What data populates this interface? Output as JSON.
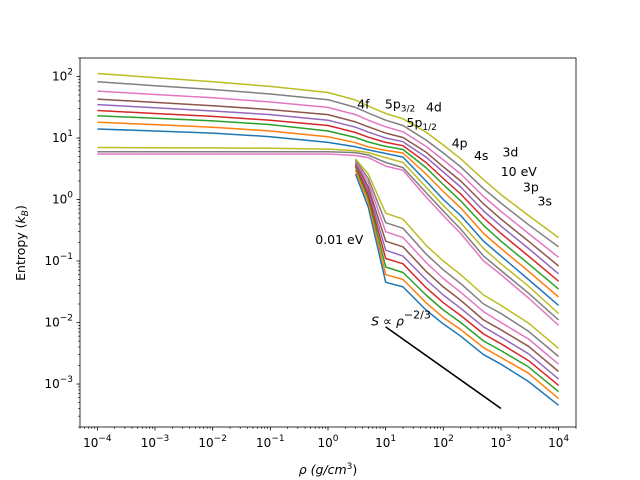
{
  "chart_data": {
    "type": "line",
    "x_scale": "log",
    "y_scale": "log",
    "xlim": [
      5e-05,
      20000
    ],
    "ylim": [
      0.0002,
      200
    ],
    "xlabel": {
      "pre": "ρ (g/cm",
      "sup": "3",
      "post": ")"
    },
    "ylabel": {
      "pre": "Entropy (",
      "italic": "k",
      "sub": "B",
      "post": ")"
    },
    "x_tick_exponents": [
      -4,
      -3,
      -2,
      -1,
      0,
      1,
      2,
      3,
      4
    ],
    "y_tick_exponents": [
      -3,
      -2,
      -1,
      0,
      1,
      2
    ],
    "tick_base": "10",
    "curve_x": [
      0.0001,
      0.001,
      0.01,
      0.1,
      1,
      3,
      5,
      10,
      20,
      50,
      100,
      200,
      500,
      1000,
      3000,
      10000
    ],
    "series": [
      {
        "name": "0.01 eV",
        "color": "#1f77b4",
        "start_x": 3,
        "values": [
          null,
          null,
          null,
          null,
          null,
          2.6,
          0.75,
          0.045,
          0.038,
          0.016,
          0.0095,
          0.006,
          0.003,
          0.0021,
          0.0011,
          0.00045
        ]
      },
      {
        "name": "",
        "color": "#ff7f0e",
        "start_x": 3,
        "values": [
          null,
          null,
          null,
          null,
          null,
          3.0,
          0.9,
          0.06,
          0.05,
          0.021,
          0.012,
          0.0077,
          0.0039,
          0.0027,
          0.0015,
          0.00058
        ]
      },
      {
        "name": "",
        "color": "#2ca02c",
        "start_x": 3,
        "values": [
          null,
          null,
          null,
          null,
          null,
          3.4,
          1.05,
          0.08,
          0.065,
          0.028,
          0.016,
          0.01,
          0.005,
          0.0035,
          0.0019,
          0.00075
        ]
      },
      {
        "name": "",
        "color": "#d62728",
        "start_x": 3,
        "values": [
          null,
          null,
          null,
          null,
          null,
          3.6,
          1.2,
          0.11,
          0.09,
          0.037,
          0.021,
          0.013,
          0.0065,
          0.0045,
          0.0024,
          0.00095
        ]
      },
      {
        "name": "",
        "color": "#9467bd",
        "start_x": 3,
        "values": [
          null,
          null,
          null,
          null,
          null,
          3.8,
          1.4,
          0.15,
          0.12,
          0.05,
          0.028,
          0.017,
          0.0085,
          0.0058,
          0.0031,
          0.0012
        ]
      },
      {
        "name": "",
        "color": "#8c564b",
        "start_x": 3,
        "values": [
          null,
          null,
          null,
          null,
          null,
          4.0,
          1.6,
          0.21,
          0.17,
          0.068,
          0.038,
          0.023,
          0.011,
          0.0076,
          0.0041,
          0.0016
        ]
      },
      {
        "name": "",
        "color": "#e377c2",
        "start_x": 3,
        "values": [
          null,
          null,
          null,
          null,
          null,
          4.2,
          1.9,
          0.3,
          0.24,
          0.095,
          0.052,
          0.031,
          0.015,
          0.01,
          0.0054,
          0.0021
        ]
      },
      {
        "name": "",
        "color": "#7f7f7f",
        "start_x": 3,
        "values": [
          null,
          null,
          null,
          null,
          null,
          4.4,
          2.2,
          0.42,
          0.34,
          0.13,
          0.072,
          0.043,
          0.02,
          0.014,
          0.0072,
          0.0028
        ]
      },
      {
        "name": "",
        "color": "#bcbd22",
        "start_x": 3,
        "values": [
          null,
          null,
          null,
          null,
          null,
          4.6,
          2.6,
          0.6,
          0.48,
          0.18,
          0.1,
          0.06,
          0.028,
          0.019,
          0.0098,
          0.0038
        ]
      },
      {
        "name": "",
        "color": "#e377c2",
        "start_x": 3,
        "values": [
          5.5,
          5.5,
          5.5,
          5.5,
          5.5,
          5.2,
          4.8,
          3.5,
          3.0,
          1.1,
          0.55,
          0.28,
          0.1,
          0.06,
          0.025,
          0.009
        ]
      },
      {
        "name": "",
        "color": "#7f7f7f",
        "start_x": 0.0001,
        "values": [
          6.0,
          6.0,
          6.0,
          6.0,
          6.0,
          5.8,
          5.3,
          4.0,
          3.3,
          1.3,
          0.65,
          0.33,
          0.12,
          0.07,
          0.03,
          0.011
        ]
      },
      {
        "name": "",
        "color": "#bcbd22",
        "start_x": 0.0001,
        "values": [
          7.0,
          6.95,
          6.9,
          6.8,
          6.6,
          6.2,
          5.8,
          4.8,
          4.0,
          1.6,
          0.8,
          0.42,
          0.16,
          0.09,
          0.039,
          0.014
        ]
      },
      {
        "name": "",
        "color": "#1f77b4",
        "start_x": 0.0001,
        "values": [
          14,
          13,
          12,
          10.5,
          8.5,
          7.2,
          6.4,
          5.6,
          4.9,
          2.0,
          1.0,
          0.55,
          0.21,
          0.12,
          0.05,
          0.019
        ]
      },
      {
        "name": "",
        "color": "#ff7f0e",
        "start_x": 0.0001,
        "values": [
          18,
          16.5,
          15,
          13,
          10.5,
          8.4,
          7.2,
          6.3,
          5.7,
          2.6,
          1.35,
          0.73,
          0.28,
          0.16,
          0.068,
          0.026
        ]
      },
      {
        "name": "",
        "color": "#2ca02c",
        "start_x": 0.0001,
        "values": [
          23,
          21,
          19,
          16.5,
          13,
          10.2,
          8.6,
          7.3,
          6.5,
          3.3,
          1.75,
          0.95,
          0.38,
          0.21,
          0.09,
          0.035
        ]
      },
      {
        "name": "",
        "color": "#d62728",
        "start_x": 0.0001,
        "values": [
          28,
          25,
          22.5,
          19.5,
          16,
          12.3,
          10.3,
          8.5,
          7.5,
          4.0,
          2.2,
          1.23,
          0.5,
          0.28,
          0.12,
          0.047
        ]
      },
      {
        "name": "",
        "color": "#9467bd",
        "start_x": 0.0001,
        "values": [
          35,
          31,
          27.5,
          24,
          19.5,
          15,
          12.5,
          10,
          8.7,
          4.9,
          2.8,
          1.6,
          0.65,
          0.37,
          0.16,
          0.062
        ]
      },
      {
        "name": "",
        "color": "#8c564b",
        "start_x": 0.0001,
        "values": [
          43,
          38,
          33.5,
          29,
          24,
          18.3,
          15.2,
          12,
          10.2,
          5.9,
          3.4,
          2.0,
          0.85,
          0.48,
          0.21,
          0.083
        ]
      },
      {
        "name": "",
        "color": "#e377c2",
        "start_x": 0.0001,
        "values": [
          58,
          51,
          45,
          38.5,
          31.5,
          24,
          19.5,
          15.2,
          12.6,
          7.3,
          4.4,
          2.6,
          1.12,
          0.64,
          0.28,
          0.115
        ]
      },
      {
        "name": "",
        "color": "#7f7f7f",
        "start_x": 0.0001,
        "values": [
          82,
          71,
          61.5,
          52,
          42,
          31.5,
          25.5,
          19.5,
          16,
          9.3,
          5.7,
          3.4,
          1.5,
          0.87,
          0.39,
          0.17
        ]
      },
      {
        "name": "10 eV",
        "color": "#bcbd22",
        "start_x": 0.0001,
        "values": [
          112,
          96,
          82,
          69,
          55,
          41.5,
          33,
          25,
          20.5,
          12.5,
          7.7,
          4.6,
          2.1,
          1.2,
          0.55,
          0.24
        ]
      }
    ],
    "reference_line": {
      "color": "#000000",
      "x": [
        10,
        1000
      ],
      "y": [
        0.0085,
        0.0004
      ]
    },
    "annotations": [
      {
        "id": "4f",
        "x": 3.2,
        "y": 30,
        "text": "4f"
      },
      {
        "id": "5p32",
        "x": 9.7,
        "y": 30,
        "text": "5p",
        "sub": "3/2"
      },
      {
        "id": "5p12",
        "x": 23,
        "y": 15,
        "text": "5p",
        "sub": "1/2"
      },
      {
        "id": "4d",
        "x": 50,
        "y": 27,
        "text": "4d"
      },
      {
        "id": "4p",
        "x": 140,
        "y": 7.0,
        "text": "4p"
      },
      {
        "id": "3d",
        "x": 1060,
        "y": 5.0,
        "text": "3d"
      },
      {
        "id": "4s",
        "x": 340,
        "y": 4.4,
        "text": "4s"
      },
      {
        "id": "10ev",
        "x": 990,
        "y": 2.4,
        "text": "10 eV"
      },
      {
        "id": "3p",
        "x": 2400,
        "y": 1.35,
        "text": "3p"
      },
      {
        "id": "3s",
        "x": 4300,
        "y": 0.8,
        "text": "3s"
      },
      {
        "id": "001ev",
        "x": 0.6,
        "y": 0.19,
        "text": "0.01 eV"
      }
    ],
    "slope_label": {
      "x": 5.6,
      "y": 0.0089,
      "pre": "S",
      "prop": " ∝ ",
      "base": "ρ",
      "sup": "−2/3"
    }
  }
}
